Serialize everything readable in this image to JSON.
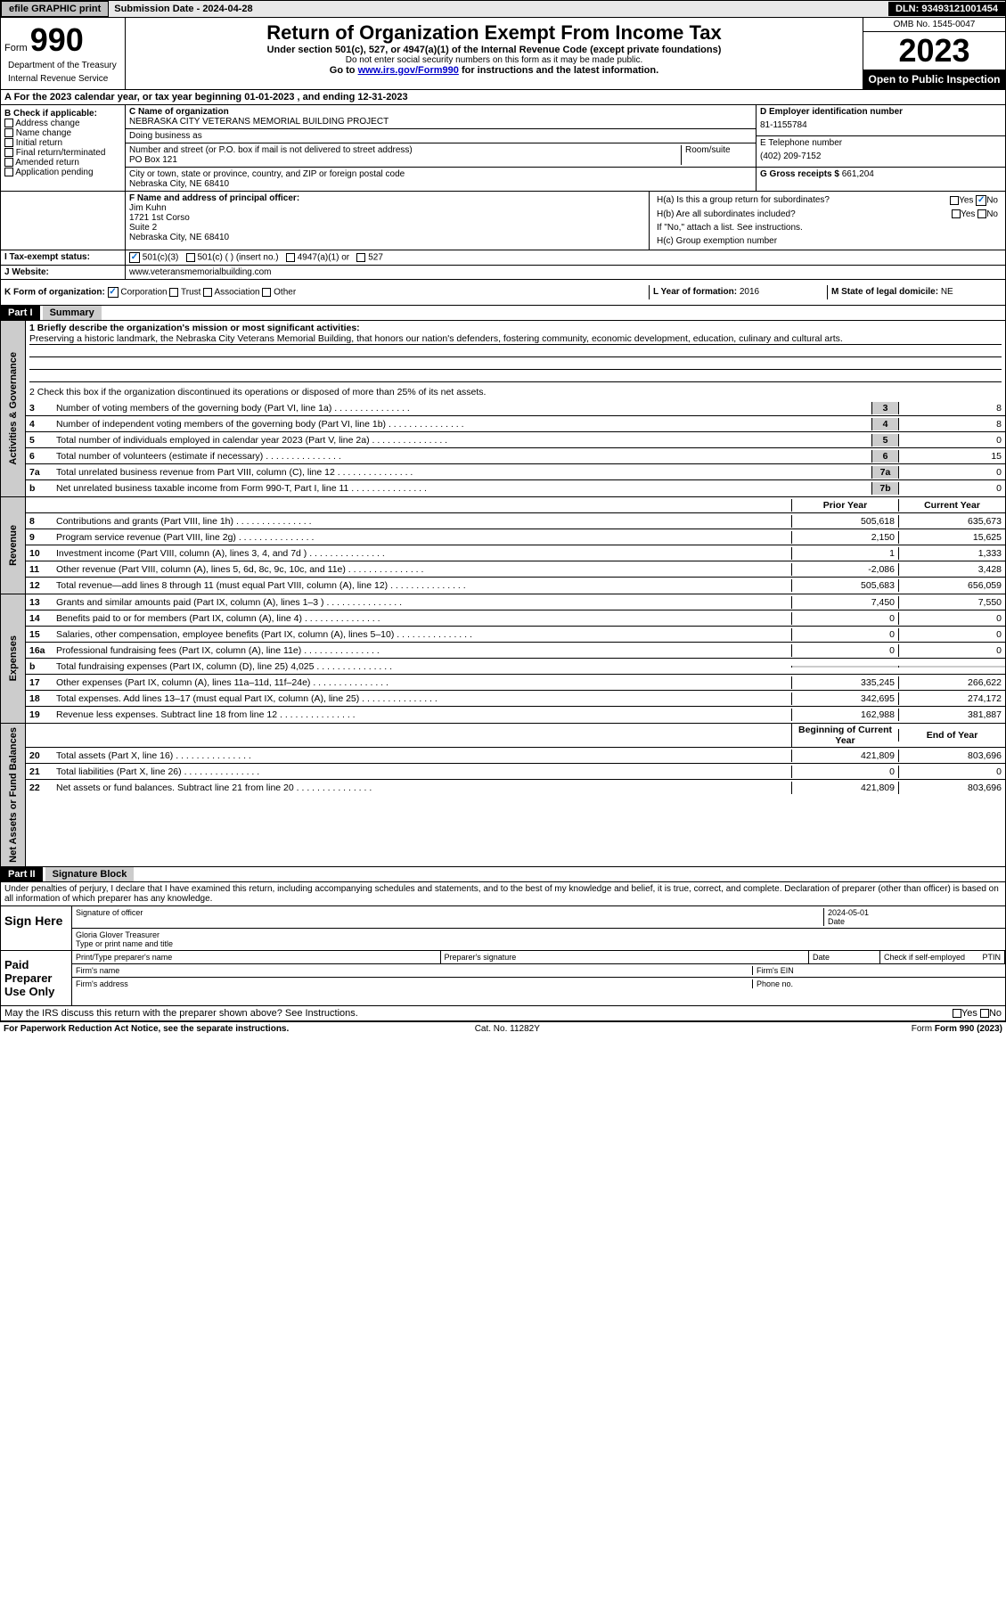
{
  "topbar": {
    "efile_btn": "efile GRAPHIC print",
    "sub_lbl": "Submission Date - 2024-04-28",
    "dln": "DLN: 93493121001454"
  },
  "header": {
    "form_label": "Form",
    "form_no": "990",
    "title": "Return of Organization Exempt From Income Tax",
    "sub1": "Under section 501(c), 527, or 4947(a)(1) of the Internal Revenue Code (except private foundations)",
    "sub2": "Do not enter social security numbers on this form as it may be made public.",
    "sub3_pre": "Go to ",
    "sub3_link": "www.irs.gov/Form990",
    "sub3_post": " for instructions and the latest information.",
    "omb": "OMB No. 1545-0047",
    "year": "2023",
    "public": "Open to Public Inspection",
    "dept": "Department of the Treasury",
    "irs": "Internal Revenue Service"
  },
  "rowA": {
    "text_pre": "A For the 2023 calendar year, or tax year beginning ",
    "begin": "01-01-2023",
    "mid": " , and ending ",
    "end": "12-31-2023"
  },
  "colB": {
    "header": "B Check if applicable:",
    "opts": [
      "Address change",
      "Name change",
      "Initial return",
      "Final return/terminated",
      "Amended return",
      "Application pending"
    ]
  },
  "org": {
    "c_label": "C Name of organization",
    "name": "NEBRASKA CITY VETERANS MEMORIAL BUILDING PROJECT",
    "dba_label": "Doing business as",
    "addr_label": "Number and street (or P.O. box if mail is not delivered to street address)",
    "room_label": "Room/suite",
    "addr": "PO Box 121",
    "city_label": "City or town, state or province, country, and ZIP or foreign postal code",
    "city": "Nebraska City, NE  68410"
  },
  "colD": {
    "d_label": "D Employer identification number",
    "ein": "81-1155784",
    "e_label": "E Telephone number",
    "phone": "(402) 209-7152",
    "g_label": "G Gross receipts $",
    "gross": "661,204"
  },
  "officer": {
    "f_label": "F Name and address of principal officer:",
    "name": "Jim Kuhn",
    "addr1": "1721 1st Corso",
    "addr2": "Suite 2",
    "addr3": "Nebraska City, NE  68410"
  },
  "h": {
    "ha": "H(a)  Is this a group return for subordinates?",
    "hb": "H(b)  Are all subordinates included?",
    "hb_note": "If \"No,\" attach a list. See instructions.",
    "hc": "H(c)  Group exemption number"
  },
  "tax_status": {
    "i_label": "I  Tax-exempt status:",
    "opts": [
      "501(c)(3)",
      "501(c) (  ) (insert no.)",
      "4947(a)(1) or",
      "527"
    ]
  },
  "website": {
    "j_label": "J  Website:",
    "value": "www.veteransmemorialbuilding.com"
  },
  "k": {
    "label": "K Form of organization:",
    "opts": [
      "Corporation",
      "Trust",
      "Association",
      "Other"
    ]
  },
  "l": {
    "label": "L Year of formation:",
    "value": "2016"
  },
  "m": {
    "label": "M State of legal domicile:",
    "value": "NE"
  },
  "part1": {
    "hdr": "Part I",
    "title": "Summary",
    "line1_label": "1  Briefly describe the organization's mission or most significant activities:",
    "mission": "Preserving a historic landmark, the Nebraska City Veterans Memorial Building, that honors our nation's defenders, fostering community, economic development, education, culinary and cultural arts.",
    "line2": "2  Check this box      if the organization discontinued its operations or disposed of more than 25% of its net assets.",
    "vert_gov": "Activities & Governance",
    "vert_rev": "Revenue",
    "vert_exp": "Expenses",
    "vert_net": "Net Assets or Fund Balances"
  },
  "gov_lines": [
    {
      "n": "3",
      "t": "Number of voting members of the governing body (Part VI, line 1a)",
      "box": "3",
      "v": "8"
    },
    {
      "n": "4",
      "t": "Number of independent voting members of the governing body (Part VI, line 1b)",
      "box": "4",
      "v": "8"
    },
    {
      "n": "5",
      "t": "Total number of individuals employed in calendar year 2023 (Part V, line 2a)",
      "box": "5",
      "v": "0"
    },
    {
      "n": "6",
      "t": "Total number of volunteers (estimate if necessary)",
      "box": "6",
      "v": "15"
    },
    {
      "n": "7a",
      "t": "Total unrelated business revenue from Part VIII, column (C), line 12",
      "box": "7a",
      "v": "0"
    },
    {
      "n": "b",
      "t": "Net unrelated business taxable income from Form 990-T, Part I, line 11",
      "box": "7b",
      "v": "0"
    }
  ],
  "rev_hdr": {
    "prior": "Prior Year",
    "curr": "Current Year"
  },
  "rev_lines": [
    {
      "n": "8",
      "t": "Contributions and grants (Part VIII, line 1h)",
      "p": "505,618",
      "c": "635,673"
    },
    {
      "n": "9",
      "t": "Program service revenue (Part VIII, line 2g)",
      "p": "2,150",
      "c": "15,625"
    },
    {
      "n": "10",
      "t": "Investment income (Part VIII, column (A), lines 3, 4, and 7d )",
      "p": "1",
      "c": "1,333"
    },
    {
      "n": "11",
      "t": "Other revenue (Part VIII, column (A), lines 5, 6d, 8c, 9c, 10c, and 11e)",
      "p": "-2,086",
      "c": "3,428"
    },
    {
      "n": "12",
      "t": "Total revenue—add lines 8 through 11 (must equal Part VIII, column (A), line 12)",
      "p": "505,683",
      "c": "656,059"
    }
  ],
  "exp_lines": [
    {
      "n": "13",
      "t": "Grants and similar amounts paid (Part IX, column (A), lines 1–3 )",
      "p": "7,450",
      "c": "7,550"
    },
    {
      "n": "14",
      "t": "Benefits paid to or for members (Part IX, column (A), line 4)",
      "p": "0",
      "c": "0"
    },
    {
      "n": "15",
      "t": "Salaries, other compensation, employee benefits (Part IX, column (A), lines 5–10)",
      "p": "0",
      "c": "0"
    },
    {
      "n": "16a",
      "t": "Professional fundraising fees (Part IX, column (A), line 11e)",
      "p": "0",
      "c": "0"
    },
    {
      "n": "b",
      "t": "Total fundraising expenses (Part IX, column (D), line 25) 4,025",
      "p": "",
      "c": ""
    },
    {
      "n": "17",
      "t": "Other expenses (Part IX, column (A), lines 11a–11d, 11f–24e)",
      "p": "335,245",
      "c": "266,622"
    },
    {
      "n": "18",
      "t": "Total expenses. Add lines 13–17 (must equal Part IX, column (A), line 25)",
      "p": "342,695",
      "c": "274,172"
    },
    {
      "n": "19",
      "t": "Revenue less expenses. Subtract line 18 from line 12",
      "p": "162,988",
      "c": "381,887"
    }
  ],
  "net_hdr": {
    "begin": "Beginning of Current Year",
    "end": "End of Year"
  },
  "net_lines": [
    {
      "n": "20",
      "t": "Total assets (Part X, line 16)",
      "p": "421,809",
      "c": "803,696"
    },
    {
      "n": "21",
      "t": "Total liabilities (Part X, line 26)",
      "p": "0",
      "c": "0"
    },
    {
      "n": "22",
      "t": "Net assets or fund balances. Subtract line 21 from line 20",
      "p": "421,809",
      "c": "803,696"
    }
  ],
  "part2": {
    "hdr": "Part II",
    "title": "Signature Block",
    "perjury": "Under penalties of perjury, I declare that I have examined this return, including accompanying schedules and statements, and to the best of my knowledge and belief, it is true, correct, and complete. Declaration of preparer (other than officer) is based on all information of which preparer has any knowledge."
  },
  "sign": {
    "here": "Sign Here",
    "sig_label": "Signature of officer",
    "date": "2024-05-01",
    "date_label": "Date",
    "name": "Gloria Glover  Treasurer",
    "name_label": "Type or print name and title"
  },
  "prep": {
    "label": "Paid Preparer Use Only",
    "h1": "Print/Type preparer's name",
    "h2": "Preparer's signature",
    "h3": "Date",
    "h4_pre": "Check        if self-employed",
    "h5": "PTIN",
    "firm_name": "Firm's name",
    "firm_ein": "Firm's EIN",
    "firm_addr": "Firm's address",
    "phone": "Phone no."
  },
  "discuss": "May the IRS discuss this return with the preparer shown above? See Instructions.",
  "footer": {
    "paperwork": "For Paperwork Reduction Act Notice, see the separate instructions.",
    "cat": "Cat. No. 11282Y",
    "form": "Form 990 (2023)"
  },
  "yes": "Yes",
  "no": "No"
}
